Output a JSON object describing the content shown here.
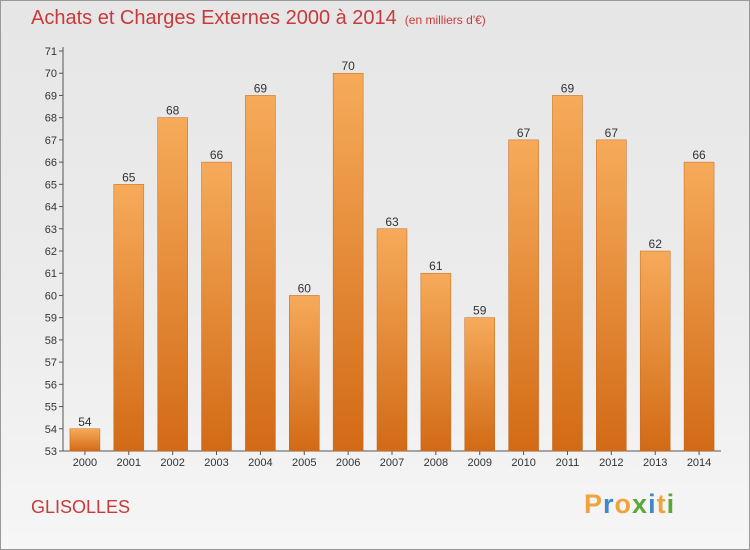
{
  "header": {
    "title": "Achats et Charges Externes 2000 à 2014",
    "unit_note": "(en milliers d'€)"
  },
  "location": "GLISOLLES",
  "logo_text": "Proxiti",
  "colors": {
    "bar_light": "#f6ab5a",
    "bar_dark": "#d26a16",
    "title": "#c73a3a"
  },
  "chart_data": {
    "type": "bar",
    "title": "Achats et Charges Externes 2000 à 2014",
    "categories": [
      "2000",
      "2001",
      "2002",
      "2003",
      "2004",
      "2005",
      "2006",
      "2007",
      "2008",
      "2009",
      "2010",
      "2011",
      "2012",
      "2013",
      "2014"
    ],
    "values": [
      54,
      65,
      68,
      66,
      69,
      60,
      70,
      63,
      61,
      59,
      67,
      69,
      67,
      62,
      66
    ],
    "ylim": [
      53,
      71
    ],
    "yticks": [
      53,
      54,
      55,
      56,
      57,
      58,
      59,
      60,
      61,
      62,
      63,
      64,
      65,
      66,
      67,
      68,
      69,
      70,
      71
    ],
    "grid": false,
    "data_labels": true
  }
}
